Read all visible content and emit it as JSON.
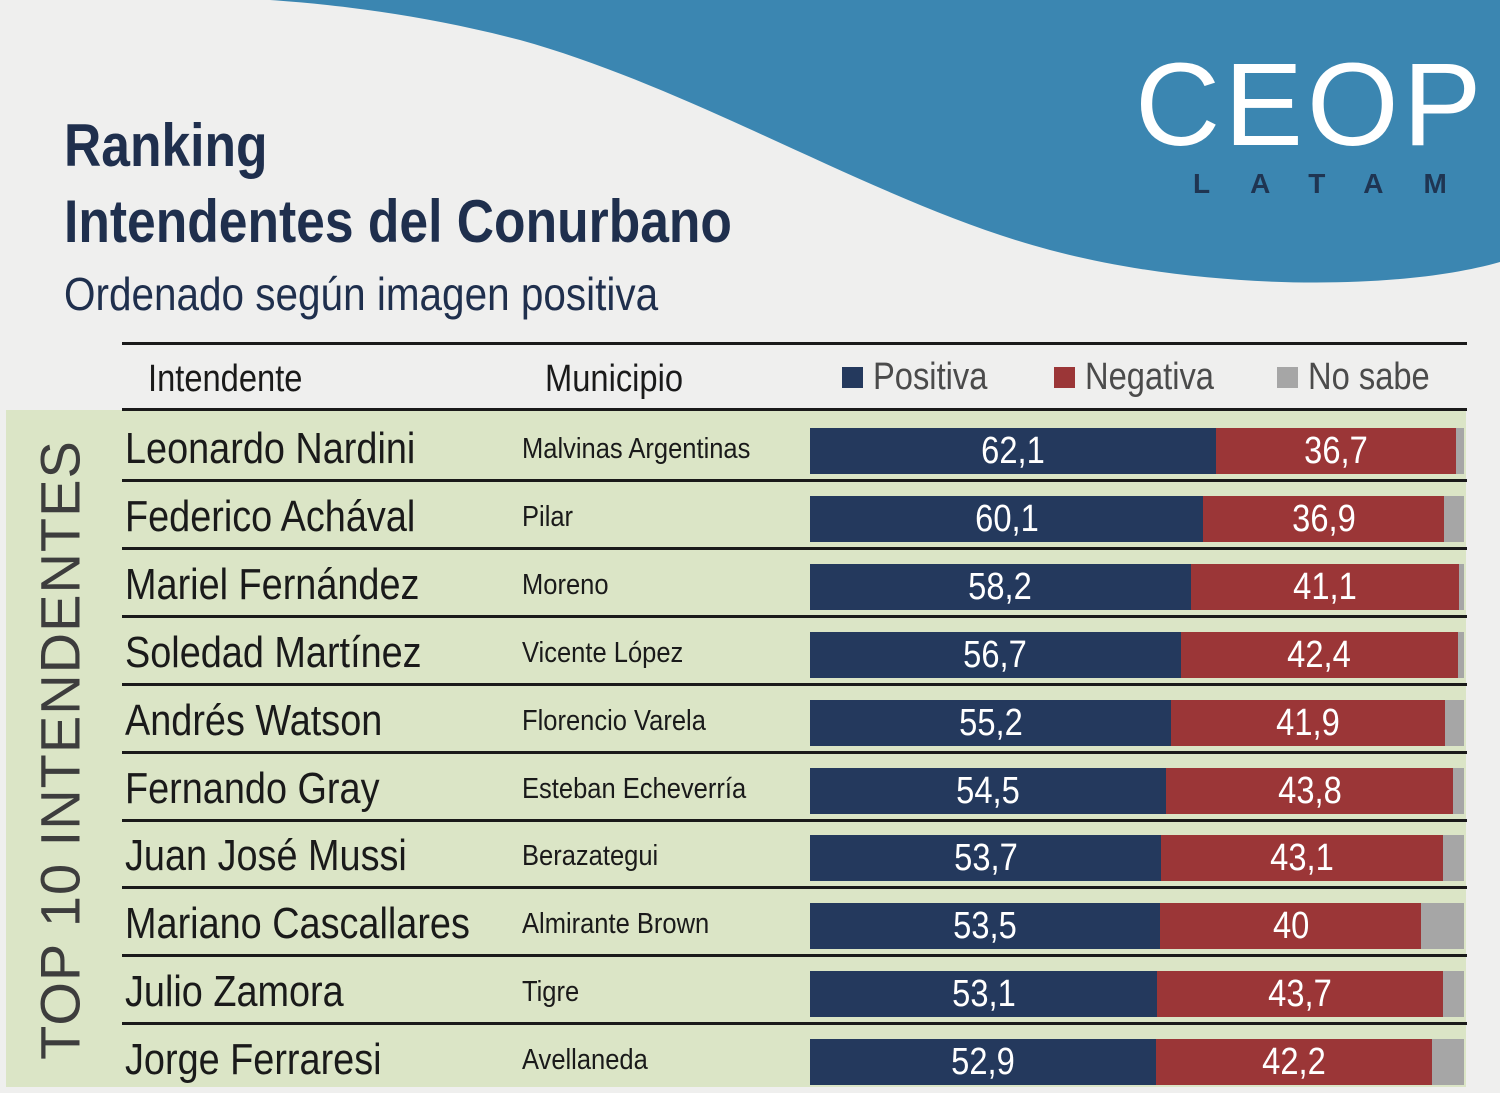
{
  "header": {
    "title_line1": "Ranking",
    "title_line2": "Intendentes del Conurbano",
    "subtitle": "Ordenado según imagen positiva"
  },
  "logo": {
    "main": "CEOP",
    "sub": "LATAM"
  },
  "side_label": "TOP 10 INTENDENTES",
  "colors": {
    "positiva": "#24395d",
    "negativa": "#9b3637",
    "no_sabe": "#a6a6a6",
    "panel": "#dbe5c6",
    "wave": "#3b86b1",
    "title": "#1f2f4d"
  },
  "table": {
    "columns": {
      "intendente": "Intendente",
      "municipio": "Municipio"
    }
  },
  "chart_data": {
    "type": "bar",
    "orientation": "horizontal",
    "stacked": true,
    "categories": [
      "Leonardo Nardini",
      "Federico Achával",
      "Mariel Fernández",
      "Soledad Martínez",
      "Andrés Watson",
      "Fernando Gray",
      "Juan José Mussi",
      "Mariano Cascallares",
      "Julio Zamora",
      "Jorge Ferraresi"
    ],
    "municipios": [
      "Malvinas Argentinas",
      "Pilar",
      "Moreno",
      "Vicente López",
      "Florencio Varela",
      "Esteban Echeverría",
      "Berazategui",
      "Almirante Brown",
      "Tigre",
      "Avellaneda"
    ],
    "series": [
      {
        "name": "Positiva",
        "values": [
          62.1,
          60.1,
          58.2,
          56.7,
          55.2,
          54.5,
          53.7,
          53.5,
          53.1,
          52.9
        ],
        "labels": [
          "62,1",
          "60,1",
          "58,2",
          "56,7",
          "55,2",
          "54,5",
          "53,7",
          "53,5",
          "53,1",
          "52,9"
        ]
      },
      {
        "name": "Negativa",
        "values": [
          36.7,
          36.9,
          41.1,
          42.4,
          41.9,
          43.8,
          43.1,
          40,
          43.7,
          42.2
        ],
        "labels": [
          "36,7",
          "36,9",
          "41,1",
          "42,4",
          "41,9",
          "43,8",
          "43,1",
          "40",
          "43,7",
          "42,2"
        ]
      },
      {
        "name": "No sabe",
        "values": [
          1.2,
          3.0,
          0.7,
          0.9,
          2.9,
          1.7,
          3.2,
          6.5,
          3.2,
          4.9
        ]
      }
    ],
    "xlim": [
      0,
      100
    ],
    "legend": "top"
  }
}
